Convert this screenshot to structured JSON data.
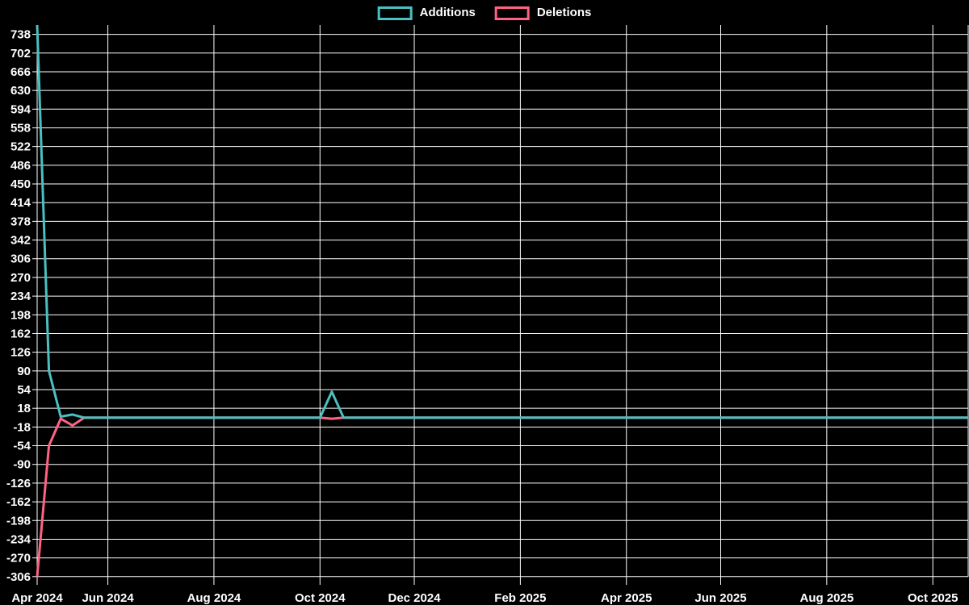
{
  "page": {
    "background_color": "#000000",
    "text_color": "#ffffff",
    "grid_color": "#ffffff"
  },
  "chart_data": {
    "type": "line",
    "title": "",
    "xlabel": "",
    "ylabel": "",
    "legend_position": "top",
    "grid": true,
    "weeks": 80,
    "y_axis": {
      "min": -306,
      "max": 756,
      "tick_step": 36,
      "tick_labels": [
        738,
        702,
        666,
        630,
        594,
        558,
        522,
        486,
        450,
        414,
        378,
        342,
        306,
        270,
        234,
        198,
        162,
        126,
        90,
        54,
        18,
        -18,
        -54,
        -90,
        -126,
        -162,
        -198,
        -234,
        -270,
        -306
      ]
    },
    "x_axis": {
      "tick_labels": [
        "Apr 2024",
        "Jun 2024",
        "Aug 2024",
        "Oct 2024",
        "Dec 2024",
        "Feb 2025",
        "Apr 2025",
        "Jun 2025",
        "Aug 2025",
        "Oct 2025"
      ],
      "tick_week_indices": [
        0,
        6,
        15,
        24,
        32,
        41,
        50,
        58,
        67,
        76
      ]
    },
    "series": [
      {
        "name": "Additions",
        "color": "#4bc0c0",
        "values": [
          756,
          90,
          2,
          6,
          0,
          0,
          0,
          0,
          0,
          0,
          0,
          0,
          0,
          0,
          0,
          0,
          0,
          0,
          0,
          0,
          0,
          0,
          0,
          0,
          0,
          50,
          0,
          0,
          0,
          0,
          0,
          0,
          0,
          0,
          0,
          0,
          0,
          0,
          0,
          0,
          0,
          0,
          0,
          0,
          0,
          0,
          0,
          0,
          0,
          0,
          0,
          0,
          0,
          0,
          0,
          0,
          0,
          0,
          0,
          0,
          0,
          0,
          0,
          0,
          0,
          0,
          0,
          0,
          0,
          0,
          0,
          0,
          0,
          0,
          0,
          0,
          0,
          0,
          0,
          0
        ]
      },
      {
        "name": "Deletions",
        "color": "#ff6384",
        "values": [
          -306,
          -54,
          -2,
          -15,
          0,
          0,
          0,
          0,
          0,
          0,
          0,
          0,
          0,
          0,
          0,
          0,
          0,
          0,
          0,
          0,
          0,
          0,
          0,
          0,
          0,
          -2,
          0,
          0,
          0,
          0,
          0,
          0,
          0,
          0,
          0,
          0,
          0,
          0,
          0,
          0,
          0,
          0,
          0,
          0,
          0,
          0,
          0,
          0,
          0,
          0,
          0,
          0,
          0,
          0,
          0,
          0,
          0,
          0,
          0,
          0,
          0,
          0,
          0,
          0,
          0,
          0,
          0,
          0,
          0,
          0,
          0,
          0,
          0,
          0,
          0,
          0,
          0,
          0,
          0,
          0
        ]
      }
    ]
  }
}
